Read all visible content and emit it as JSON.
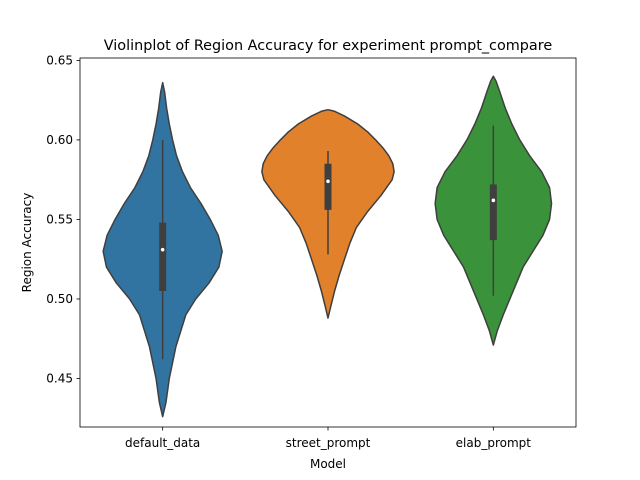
{
  "chart_data": {
    "type": "violin",
    "title": "Violinplot of Region Accuracy for experiment prompt_compare",
    "xlabel": "Model",
    "ylabel": "Region Accuracy",
    "ylim": [
      0.4195,
      0.6515
    ],
    "yticks": [
      0.45,
      0.5,
      0.55,
      0.6,
      0.65
    ],
    "ytick_labels": [
      "0.45",
      "0.50",
      "0.55",
      "0.60",
      "0.65"
    ],
    "categories": [
      "default_data",
      "street_prompt",
      "elab_prompt"
    ],
    "grid": false,
    "series": [
      {
        "category": "default_data",
        "color": "#3274a1",
        "min": 0.462,
        "q1": 0.505,
        "median": 0.531,
        "q3": 0.548,
        "max": 0.6,
        "density": [
          [
            0.426,
            0.0
          ],
          [
            0.435,
            0.05
          ],
          [
            0.45,
            0.1
          ],
          [
            0.47,
            0.2
          ],
          [
            0.49,
            0.35
          ],
          [
            0.5,
            0.5
          ],
          [
            0.51,
            0.7
          ],
          [
            0.52,
            0.85
          ],
          [
            0.53,
            0.9
          ],
          [
            0.54,
            0.84
          ],
          [
            0.55,
            0.72
          ],
          [
            0.56,
            0.58
          ],
          [
            0.57,
            0.42
          ],
          [
            0.58,
            0.3
          ],
          [
            0.59,
            0.21
          ],
          [
            0.6,
            0.15
          ],
          [
            0.61,
            0.1
          ],
          [
            0.62,
            0.06
          ],
          [
            0.63,
            0.03
          ],
          [
            0.636,
            0.0
          ]
        ]
      },
      {
        "category": "street_prompt",
        "color": "#e1812c",
        "min": 0.528,
        "q1": 0.556,
        "median": 0.574,
        "q3": 0.585,
        "max": 0.593,
        "density": [
          [
            0.488,
            0.0
          ],
          [
            0.495,
            0.04
          ],
          [
            0.505,
            0.1
          ],
          [
            0.515,
            0.17
          ],
          [
            0.525,
            0.25
          ],
          [
            0.535,
            0.33
          ],
          [
            0.545,
            0.43
          ],
          [
            0.555,
            0.6
          ],
          [
            0.565,
            0.8
          ],
          [
            0.575,
            0.97
          ],
          [
            0.58,
            1.0
          ],
          [
            0.585,
            0.98
          ],
          [
            0.59,
            0.92
          ],
          [
            0.595,
            0.83
          ],
          [
            0.6,
            0.72
          ],
          [
            0.605,
            0.6
          ],
          [
            0.61,
            0.45
          ],
          [
            0.615,
            0.25
          ],
          [
            0.618,
            0.1
          ],
          [
            0.619,
            0.0
          ]
        ]
      },
      {
        "category": "elab_prompt",
        "color": "#3a923a",
        "min": 0.502,
        "q1": 0.537,
        "median": 0.562,
        "q3": 0.572,
        "max": 0.609,
        "density": [
          [
            0.471,
            0.0
          ],
          [
            0.48,
            0.06
          ],
          [
            0.49,
            0.15
          ],
          [
            0.5,
            0.25
          ],
          [
            0.51,
            0.35
          ],
          [
            0.52,
            0.45
          ],
          [
            0.53,
            0.6
          ],
          [
            0.54,
            0.75
          ],
          [
            0.55,
            0.85
          ],
          [
            0.56,
            0.88
          ],
          [
            0.57,
            0.85
          ],
          [
            0.58,
            0.73
          ],
          [
            0.59,
            0.55
          ],
          [
            0.6,
            0.4
          ],
          [
            0.61,
            0.28
          ],
          [
            0.62,
            0.18
          ],
          [
            0.63,
            0.1
          ],
          [
            0.637,
            0.04
          ],
          [
            0.64,
            0.0
          ]
        ]
      }
    ]
  }
}
